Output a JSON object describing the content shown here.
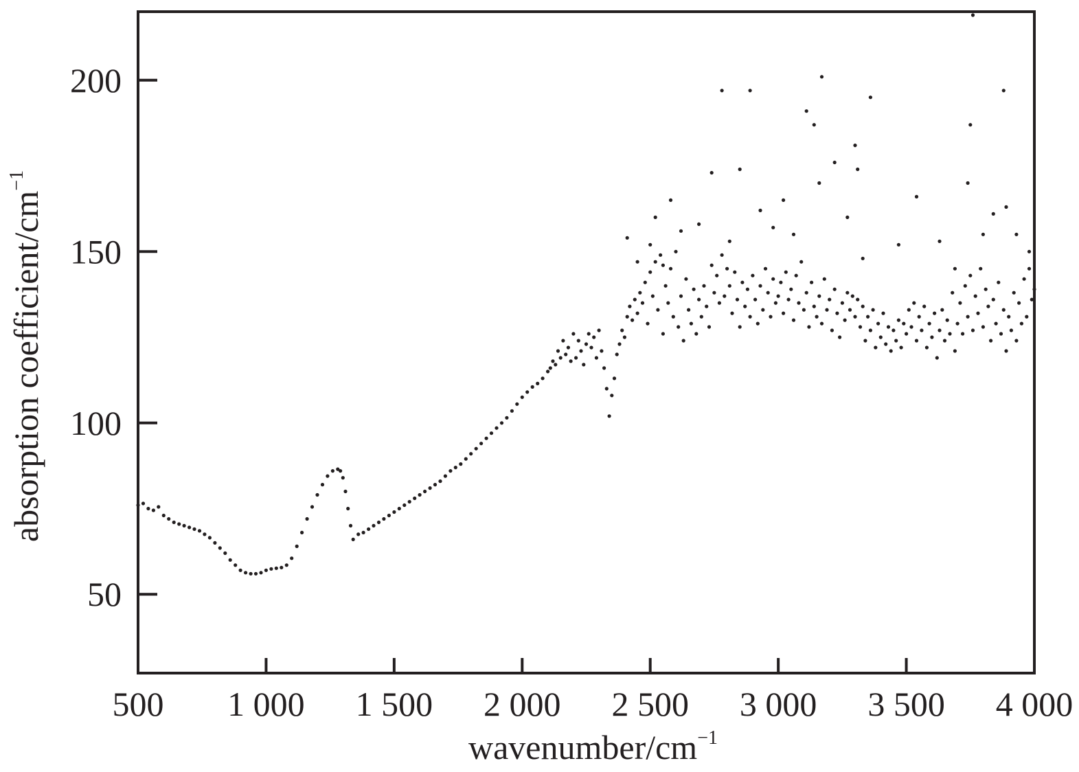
{
  "chart_data": {
    "type": "scatter",
    "title": "",
    "xlabel": "wavenumber/cm",
    "xlabel_superscript": "−1",
    "ylabel": "absorption coefficient/cm",
    "ylabel_superscript": "−1",
    "xlim": [
      500,
      4000
    ],
    "ylim": [
      27,
      220
    ],
    "xticks": [
      500,
      1000,
      1500,
      2000,
      2500,
      3000,
      3500,
      4000
    ],
    "xtick_labels": [
      "500",
      "1 000",
      "1 500",
      "2 000",
      "2 500",
      "3 000",
      "3 500",
      "4 000"
    ],
    "yticks": [
      50,
      100,
      150,
      200
    ],
    "ytick_labels": [
      "50",
      "100",
      "150",
      "200"
    ],
    "grid": false,
    "legend": "none",
    "colors": {
      "points": "#231f20",
      "axes": "#231f20",
      "background": "#ffffff"
    },
    "series": [
      {
        "points": [
          [
            500,
            76
          ],
          [
            520,
            76.5
          ],
          [
            540,
            75
          ],
          [
            560,
            74.5
          ],
          [
            580,
            75.5
          ],
          [
            600,
            73
          ],
          [
            620,
            72
          ],
          [
            640,
            71
          ],
          [
            660,
            70.5
          ],
          [
            680,
            70
          ],
          [
            700,
            69.5
          ],
          [
            720,
            69
          ],
          [
            740,
            68.5
          ],
          [
            760,
            67.5
          ],
          [
            780,
            66.5
          ],
          [
            800,
            65
          ],
          [
            820,
            63.5
          ],
          [
            840,
            62
          ],
          [
            860,
            60
          ],
          [
            880,
            58.5
          ],
          [
            900,
            57
          ],
          [
            920,
            56.3
          ],
          [
            940,
            56
          ],
          [
            960,
            56
          ],
          [
            980,
            56.3
          ],
          [
            1000,
            57
          ],
          [
            1020,
            57.4
          ],
          [
            1040,
            57.6
          ],
          [
            1060,
            57.8
          ],
          [
            1080,
            58.5
          ],
          [
            1100,
            60.5
          ],
          [
            1120,
            64
          ],
          [
            1140,
            68
          ],
          [
            1160,
            72
          ],
          [
            1180,
            75.5
          ],
          [
            1200,
            79
          ],
          [
            1220,
            82
          ],
          [
            1240,
            84.5
          ],
          [
            1260,
            86
          ],
          [
            1280,
            86.5
          ],
          [
            1290,
            86
          ],
          [
            1300,
            84
          ],
          [
            1310,
            80
          ],
          [
            1320,
            75
          ],
          [
            1330,
            70
          ],
          [
            1340,
            66
          ],
          [
            1360,
            67.5
          ],
          [
            1380,
            68
          ],
          [
            1400,
            69
          ],
          [
            1420,
            70
          ],
          [
            1440,
            71
          ],
          [
            1460,
            72
          ],
          [
            1480,
            73
          ],
          [
            1500,
            74
          ],
          [
            1520,
            75
          ],
          [
            1540,
            76
          ],
          [
            1560,
            77
          ],
          [
            1580,
            78
          ],
          [
            1600,
            79
          ],
          [
            1620,
            80
          ],
          [
            1640,
            81
          ],
          [
            1660,
            82
          ],
          [
            1680,
            83
          ],
          [
            1700,
            84.5
          ],
          [
            1720,
            86
          ],
          [
            1740,
            87
          ],
          [
            1760,
            88
          ],
          [
            1780,
            89.5
          ],
          [
            1800,
            91
          ],
          [
            1820,
            92.5
          ],
          [
            1840,
            94
          ],
          [
            1860,
            95.5
          ],
          [
            1880,
            97
          ],
          [
            1900,
            98.5
          ],
          [
            1920,
            100
          ],
          [
            1940,
            101.5
          ],
          [
            1960,
            103.5
          ],
          [
            1980,
            105.5
          ],
          [
            2000,
            107.5
          ],
          [
            2020,
            109
          ],
          [
            2040,
            110.5
          ],
          [
            2060,
            111.5
          ],
          [
            2080,
            113
          ],
          [
            2100,
            115
          ],
          [
            2110,
            116
          ],
          [
            2120,
            118
          ],
          [
            2130,
            117
          ],
          [
            2140,
            121
          ],
          [
            2150,
            119
          ],
          [
            2160,
            124
          ],
          [
            2170,
            120
          ],
          [
            2180,
            122
          ],
          [
            2190,
            118
          ],
          [
            2200,
            126
          ],
          [
            2210,
            119
          ],
          [
            2220,
            124
          ],
          [
            2230,
            121
          ],
          [
            2240,
            117
          ],
          [
            2250,
            123
          ],
          [
            2260,
            126
          ],
          [
            2270,
            122
          ],
          [
            2280,
            125
          ],
          [
            2290,
            119
          ],
          [
            2300,
            127
          ],
          [
            2310,
            121
          ],
          [
            2320,
            116
          ],
          [
            2330,
            110
          ],
          [
            2340,
            102
          ],
          [
            2350,
            108
          ],
          [
            2360,
            113
          ],
          [
            2370,
            120
          ],
          [
            2380,
            123
          ],
          [
            2390,
            127
          ],
          [
            2400,
            125
          ],
          [
            2410,
            131
          ],
          [
            2420,
            134
          ],
          [
            2430,
            130
          ],
          [
            2440,
            136
          ],
          [
            2450,
            132
          ],
          [
            2460,
            138
          ],
          [
            2470,
            135
          ],
          [
            2480,
            141
          ],
          [
            2490,
            129
          ],
          [
            2500,
            144
          ],
          [
            2510,
            137
          ],
          [
            2520,
            147
          ],
          [
            2530,
            133
          ],
          [
            2540,
            149
          ],
          [
            2550,
            126
          ],
          [
            2560,
            140
          ],
          [
            2570,
            135
          ],
          [
            2580,
            145
          ],
          [
            2590,
            131
          ],
          [
            2600,
            150
          ],
          [
            2610,
            128
          ],
          [
            2620,
            137
          ],
          [
            2630,
            124
          ],
          [
            2640,
            142
          ],
          [
            2650,
            133
          ],
          [
            2660,
            129
          ],
          [
            2670,
            139
          ],
          [
            2680,
            126
          ],
          [
            2690,
            136
          ],
          [
            2700,
            131
          ],
          [
            2710,
            140
          ],
          [
            2720,
            134
          ],
          [
            2730,
            128
          ],
          [
            2740,
            146
          ],
          [
            2750,
            138
          ],
          [
            2760,
            143
          ],
          [
            2770,
            135
          ],
          [
            2780,
            149
          ],
          [
            2790,
            137
          ],
          [
            2800,
            145
          ],
          [
            2810,
            140
          ],
          [
            2820,
            132
          ],
          [
            2830,
            144
          ],
          [
            2840,
            136
          ],
          [
            2850,
            128
          ],
          [
            2860,
            141
          ],
          [
            2870,
            134
          ],
          [
            2880,
            139
          ],
          [
            2890,
            131
          ],
          [
            2900,
            143
          ],
          [
            2910,
            136
          ],
          [
            2920,
            129
          ],
          [
            2930,
            140
          ],
          [
            2940,
            133
          ],
          [
            2950,
            145
          ],
          [
            2960,
            138
          ],
          [
            2970,
            131
          ],
          [
            2980,
            142
          ],
          [
            2990,
            135
          ],
          [
            3000,
            137
          ],
          [
            3010,
            141
          ],
          [
            3020,
            132
          ],
          [
            3030,
            144
          ],
          [
            3040,
            136
          ],
          [
            3050,
            139
          ],
          [
            3060,
            130
          ],
          [
            3070,
            143
          ],
          [
            3080,
            135
          ],
          [
            3090,
            147
          ],
          [
            3100,
            133
          ],
          [
            3110,
            138
          ],
          [
            3120,
            128
          ],
          [
            3130,
            141
          ],
          [
            3140,
            134
          ],
          [
            3150,
            131
          ],
          [
            3160,
            137
          ],
          [
            3170,
            129
          ],
          [
            3180,
            142
          ],
          [
            3190,
            133
          ],
          [
            3200,
            136
          ],
          [
            3210,
            127
          ],
          [
            3220,
            139
          ],
          [
            3230,
            132
          ],
          [
            3240,
            125
          ],
          [
            3250,
            135
          ],
          [
            3260,
            130
          ],
          [
            3270,
            138
          ],
          [
            3280,
            133
          ],
          [
            3290,
            137
          ],
          [
            3300,
            131
          ],
          [
            3310,
            136
          ],
          [
            3320,
            128
          ],
          [
            3330,
            134
          ],
          [
            3340,
            124
          ],
          [
            3350,
            131
          ],
          [
            3360,
            127
          ],
          [
            3370,
            133
          ],
          [
            3380,
            122
          ],
          [
            3390,
            129
          ],
          [
            3400,
            125
          ],
          [
            3410,
            132
          ],
          [
            3420,
            123
          ],
          [
            3430,
            128
          ],
          [
            3440,
            121
          ],
          [
            3450,
            127
          ],
          [
            3460,
            124
          ],
          [
            3470,
            130
          ],
          [
            3480,
            122
          ],
          [
            3490,
            129
          ],
          [
            3500,
            126
          ],
          [
            3510,
            133
          ],
          [
            3520,
            128
          ],
          [
            3530,
            135
          ],
          [
            3540,
            124
          ],
          [
            3550,
            131
          ],
          [
            3560,
            127
          ],
          [
            3570,
            134
          ],
          [
            3580,
            122
          ],
          [
            3590,
            129
          ],
          [
            3600,
            125
          ],
          [
            3610,
            132
          ],
          [
            3620,
            119
          ],
          [
            3630,
            127
          ],
          [
            3640,
            133
          ],
          [
            3650,
            124
          ],
          [
            3660,
            130
          ],
          [
            3670,
            126
          ],
          [
            3680,
            138
          ],
          [
            3690,
            121
          ],
          [
            3700,
            129
          ],
          [
            3710,
            135
          ],
          [
            3720,
            126
          ],
          [
            3730,
            140
          ],
          [
            3740,
            131
          ],
          [
            3750,
            143
          ],
          [
            3760,
            127
          ],
          [
            3770,
            137
          ],
          [
            3780,
            132
          ],
          [
            3790,
            145
          ],
          [
            3800,
            128
          ],
          [
            3810,
            139
          ],
          [
            3820,
            134
          ],
          [
            3830,
            124
          ],
          [
            3840,
            136
          ],
          [
            3850,
            129
          ],
          [
            3860,
            141
          ],
          [
            3870,
            126
          ],
          [
            3880,
            133
          ],
          [
            3890,
            121
          ],
          [
            3900,
            131
          ],
          [
            3910,
            127
          ],
          [
            3920,
            138
          ],
          [
            3930,
            124
          ],
          [
            3940,
            135
          ],
          [
            3950,
            129
          ],
          [
            3960,
            142
          ],
          [
            3970,
            131
          ],
          [
            3980,
            145
          ],
          [
            3990,
            136
          ],
          [
            4000,
            139
          ],
          [
            2410,
            154
          ],
          [
            2450,
            147
          ],
          [
            2500,
            152
          ],
          [
            2520,
            160
          ],
          [
            2550,
            146
          ],
          [
            2580,
            165
          ],
          [
            2620,
            156
          ],
          [
            2690,
            158
          ],
          [
            2740,
            173
          ],
          [
            2780,
            197
          ],
          [
            2810,
            153
          ],
          [
            2850,
            174
          ],
          [
            2890,
            197
          ],
          [
            2930,
            162
          ],
          [
            2980,
            157
          ],
          [
            3020,
            165
          ],
          [
            3060,
            155
          ],
          [
            3110,
            191
          ],
          [
            3140,
            187
          ],
          [
            3160,
            170
          ],
          [
            3170,
            201
          ],
          [
            3220,
            176
          ],
          [
            3270,
            160
          ],
          [
            3300,
            181
          ],
          [
            3310,
            174
          ],
          [
            3360,
            195
          ],
          [
            3330,
            148
          ],
          [
            3470,
            152
          ],
          [
            3540,
            166
          ],
          [
            3630,
            153
          ],
          [
            3690,
            145
          ],
          [
            3740,
            170
          ],
          [
            3750,
            187
          ],
          [
            3760,
            219
          ],
          [
            3800,
            155
          ],
          [
            3840,
            161
          ],
          [
            3880,
            197
          ],
          [
            3890,
            163
          ],
          [
            3930,
            155
          ],
          [
            3980,
            150
          ]
        ]
      }
    ]
  }
}
